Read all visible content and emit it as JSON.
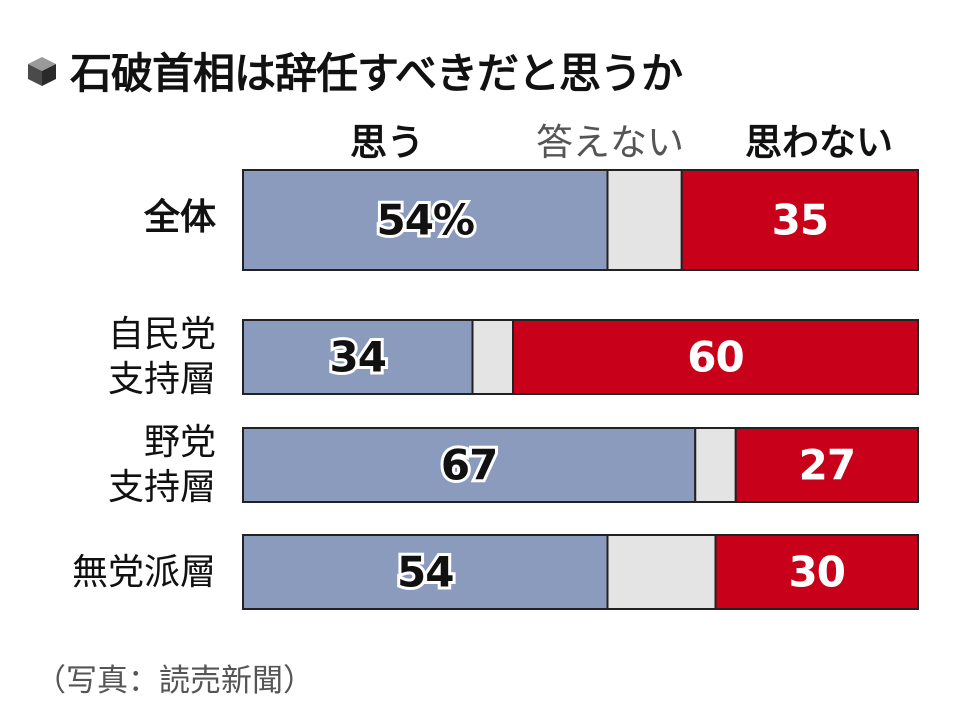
{
  "title": "石破首相は辞任すべきだと思うか",
  "source": "（写真：読売新聞）",
  "chart_data": {
    "type": "bar",
    "orientation": "horizontal",
    "stacked": true,
    "title": "石破首相は辞任すべきだと思うか",
    "categories": [
      "全体",
      "自民党\n支持層",
      "野党\n支持層",
      "無党派層"
    ],
    "series": [
      {
        "name": "思う",
        "values": [
          54,
          34,
          67,
          54
        ],
        "color": "#8a9bbd",
        "value_labels": [
          "54%",
          "34",
          "67",
          "54"
        ]
      },
      {
        "name": "答えない",
        "values": [
          11,
          6,
          6,
          16
        ],
        "color": "#e4e4e4",
        "value_labels": [
          "",
          "",
          "",
          ""
        ]
      },
      {
        "name": "思わない",
        "values": [
          35,
          60,
          27,
          30
        ],
        "color": "#c8001a",
        "value_labels": [
          "35",
          "60",
          "27",
          "30"
        ]
      }
    ],
    "xlim": [
      0,
      100
    ],
    "legend_placement": "top",
    "grid": false
  }
}
